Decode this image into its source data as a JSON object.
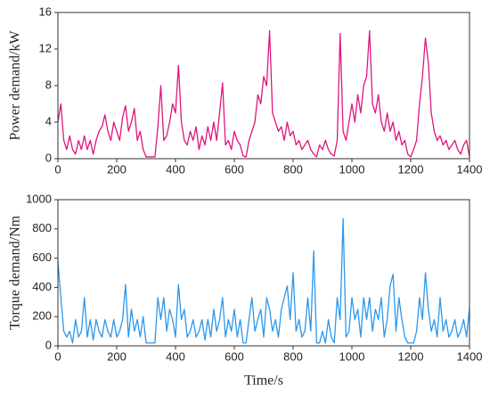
{
  "chart_data": [
    {
      "type": "line",
      "y_label": "Power demand/kW",
      "x": [
        0,
        10,
        20,
        30,
        40,
        50,
        60,
        70,
        80,
        90,
        100,
        110,
        120,
        130,
        140,
        150,
        160,
        170,
        180,
        190,
        200,
        210,
        220,
        230,
        240,
        250,
        260,
        270,
        280,
        290,
        300,
        310,
        320,
        330,
        340,
        350,
        360,
        370,
        380,
        390,
        400,
        410,
        420,
        430,
        440,
        450,
        460,
        470,
        480,
        490,
        500,
        510,
        520,
        530,
        540,
        550,
        560,
        570,
        580,
        590,
        600,
        610,
        620,
        630,
        640,
        650,
        660,
        670,
        680,
        690,
        700,
        710,
        720,
        730,
        740,
        750,
        760,
        770,
        780,
        790,
        800,
        810,
        820,
        830,
        840,
        850,
        860,
        870,
        880,
        890,
        900,
        910,
        920,
        930,
        940,
        950,
        960,
        970,
        980,
        990,
        1000,
        1010,
        1020,
        1030,
        1040,
        1050,
        1060,
        1070,
        1080,
        1090,
        1100,
        1110,
        1120,
        1130,
        1140,
        1150,
        1160,
        1170,
        1180,
        1190,
        1200,
        1210,
        1220,
        1230,
        1240,
        1250,
        1260,
        1270,
        1280,
        1290,
        1300,
        1310,
        1320,
        1330,
        1340,
        1350,
        1360,
        1370,
        1380,
        1390,
        1400
      ],
      "series": [
        {
          "name": "Power demand",
          "color": "#e0157f",
          "values": [
            4,
            6,
            2,
            1,
            2.5,
            1,
            0.5,
            2,
            1,
            2.5,
            1,
            2,
            0.5,
            2,
            3,
            3.5,
            4.8,
            3,
            2,
            4,
            3,
            2,
            4.5,
            5.8,
            3,
            4,
            5.5,
            2,
            3,
            1,
            0.2,
            0.2,
            0.2,
            0.2,
            3.5,
            8,
            2,
            2.5,
            4,
            6,
            5,
            10.2,
            4,
            2,
            1.5,
            3,
            2,
            3.5,
            1,
            2.5,
            1.5,
            3.5,
            2,
            4,
            2,
            5,
            8.3,
            1.5,
            2,
            1,
            3,
            2,
            1.5,
            0.3,
            0.2,
            2,
            3,
            4,
            7,
            6,
            9,
            8,
            14,
            5,
            4,
            3,
            3.5,
            2,
            4,
            2.5,
            3,
            1.5,
            2,
            1,
            1.5,
            2,
            1,
            0.5,
            0.2,
            1.5,
            1,
            2,
            1,
            0.5,
            0.3,
            2,
            13.7,
            3,
            2,
            4,
            6,
            4,
            7,
            5,
            8,
            9,
            14,
            6,
            5,
            7,
            4,
            3,
            5,
            3,
            4,
            2,
            3,
            1.5,
            2,
            0.5,
            0.2,
            1,
            2,
            6,
            9,
            13.2,
            10.5,
            5,
            3,
            2,
            2.5,
            1.5,
            2,
            1,
            1.5,
            2,
            1,
            0.5,
            1.5,
            2,
            0.2
          ]
        }
      ],
      "xlim": [
        0,
        1400
      ],
      "xticks": [
        0,
        200,
        400,
        600,
        800,
        1000,
        1200,
        1400
      ],
      "ylim": [
        0,
        16
      ],
      "yticks": [
        0,
        4,
        8,
        12,
        16
      ]
    },
    {
      "type": "line",
      "x_label": "Time/s",
      "y_label": "Torque demand/Nm",
      "x": [
        0,
        10,
        20,
        30,
        40,
        50,
        60,
        70,
        80,
        90,
        100,
        110,
        120,
        130,
        140,
        150,
        160,
        170,
        180,
        190,
        200,
        210,
        220,
        230,
        240,
        250,
        260,
        270,
        280,
        290,
        300,
        310,
        320,
        330,
        340,
        350,
        360,
        370,
        380,
        390,
        400,
        410,
        420,
        430,
        440,
        450,
        460,
        470,
        480,
        490,
        500,
        510,
        520,
        530,
        540,
        550,
        560,
        570,
        580,
        590,
        600,
        610,
        620,
        630,
        640,
        650,
        660,
        670,
        680,
        690,
        700,
        710,
        720,
        730,
        740,
        750,
        760,
        770,
        780,
        790,
        800,
        810,
        820,
        830,
        840,
        850,
        860,
        870,
        880,
        890,
        900,
        910,
        920,
        930,
        940,
        950,
        960,
        970,
        980,
        990,
        1000,
        1010,
        1020,
        1030,
        1040,
        1050,
        1060,
        1070,
        1080,
        1090,
        1100,
        1110,
        1120,
        1130,
        1140,
        1150,
        1160,
        1170,
        1180,
        1190,
        1200,
        1210,
        1220,
        1230,
        1240,
        1250,
        1260,
        1270,
        1280,
        1290,
        1300,
        1310,
        1320,
        1330,
        1340,
        1350,
        1360,
        1370,
        1380,
        1390,
        1400
      ],
      "series": [
        {
          "name": "Torque demand",
          "color": "#2b97ec",
          "values": [
            580,
            330,
            100,
            60,
            100,
            20,
            180,
            60,
            100,
            330,
            60,
            180,
            40,
            180,
            100,
            60,
            180,
            100,
            60,
            180,
            60,
            100,
            180,
            420,
            60,
            250,
            100,
            180,
            60,
            200,
            20,
            20,
            20,
            20,
            330,
            180,
            330,
            100,
            250,
            180,
            60,
            420,
            180,
            250,
            60,
            100,
            180,
            60,
            100,
            180,
            40,
            180,
            60,
            250,
            100,
            180,
            330,
            60,
            180,
            100,
            250,
            60,
            180,
            20,
            20,
            180,
            330,
            100,
            180,
            250,
            60,
            330,
            250,
            100,
            180,
            60,
            250,
            330,
            410,
            180,
            500,
            100,
            180,
            60,
            100,
            330,
            100,
            650,
            20,
            20,
            100,
            20,
            180,
            60,
            20,
            330,
            180,
            870,
            60,
            100,
            330,
            180,
            250,
            60,
            330,
            180,
            330,
            100,
            250,
            180,
            330,
            60,
            180,
            410,
            490,
            100,
            330,
            180,
            60,
            20,
            20,
            20,
            100,
            330,
            180,
            500,
            250,
            100,
            180,
            60,
            330,
            100,
            180,
            60,
            100,
            180,
            60,
            100,
            180,
            60,
            260
          ]
        }
      ],
      "xlim": [
        0,
        1400
      ],
      "xticks": [
        0,
        200,
        400,
        600,
        800,
        1000,
        1200,
        1400
      ],
      "ylim": [
        0,
        1000
      ],
      "yticks": [
        0,
        200,
        400,
        600,
        800,
        1000
      ]
    }
  ]
}
